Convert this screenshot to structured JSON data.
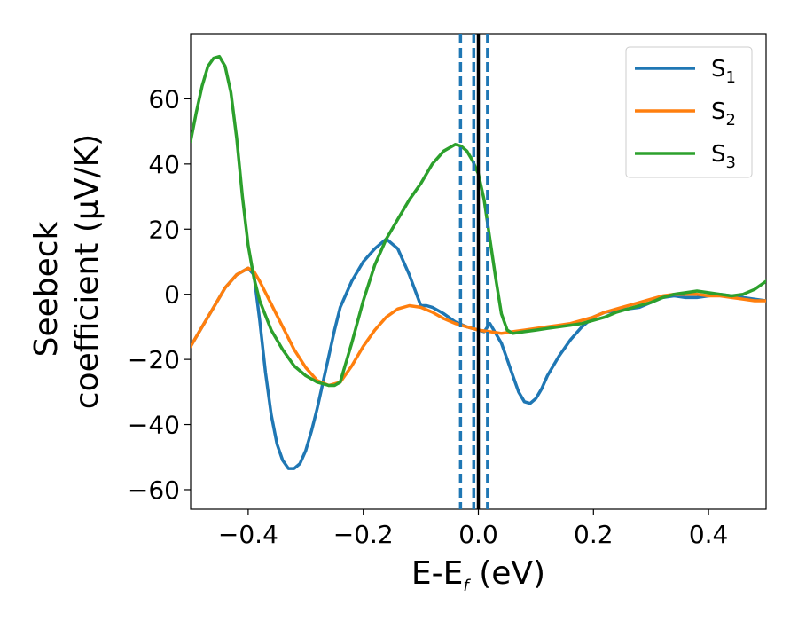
{
  "chart_data": {
    "type": "line",
    "xlabel": "E-E",
    "xlabel_sub": "f",
    "xlabel_unit": " (eV)",
    "ylabel_line1": "Seebeck",
    "ylabel_line2": "coefficient  (μV/K)",
    "xlim": [
      -0.5,
      0.5
    ],
    "ylim": [
      -66,
      80
    ],
    "xticks": [
      -0.4,
      -0.2,
      0.0,
      0.2,
      0.4
    ],
    "xtick_labels": [
      "−0.4",
      "−0.2",
      "0.0",
      "0.2",
      "0.4"
    ],
    "yticks": [
      -60,
      -40,
      -20,
      0,
      20,
      40,
      60
    ],
    "ytick_labels": [
      "−60",
      "−40",
      "−20",
      "0",
      "20",
      "40",
      "60"
    ],
    "grid": false,
    "legend_position": "top-right",
    "vlines": [
      {
        "x": -0.031,
        "style": "dashed",
        "color": "#1f77b4"
      },
      {
        "x": -0.008,
        "style": "dashed",
        "color": "#1f77b4"
      },
      {
        "x": 0.016,
        "style": "dashed",
        "color": "#1f77b4"
      },
      {
        "x": 0.0,
        "style": "solid",
        "color": "#000000"
      }
    ],
    "series": [
      {
        "name": "S",
        "sub": "1",
        "color": "#1f77b4",
        "x": [
          -0.5,
          -0.48,
          -0.46,
          -0.44,
          -0.42,
          -0.4,
          -0.39,
          -0.38,
          -0.37,
          -0.36,
          -0.35,
          -0.34,
          -0.33,
          -0.32,
          -0.31,
          -0.3,
          -0.29,
          -0.28,
          -0.27,
          -0.26,
          -0.25,
          -0.24,
          -0.22,
          -0.2,
          -0.18,
          -0.16,
          -0.14,
          -0.12,
          -0.1,
          -0.09,
          -0.08,
          -0.06,
          -0.04,
          -0.02,
          0.0,
          0.01,
          0.02,
          0.03,
          0.04,
          0.05,
          0.06,
          0.07,
          0.08,
          0.09,
          0.1,
          0.11,
          0.12,
          0.14,
          0.16,
          0.18,
          0.2,
          0.22,
          0.24,
          0.26,
          0.28,
          0.3,
          0.32,
          0.34,
          0.36,
          0.38,
          0.4,
          0.42,
          0.44,
          0.46,
          0.48,
          0.5
        ],
        "y": [
          -16,
          -10,
          -4,
          2,
          6,
          8,
          6,
          -8,
          -24,
          -37,
          -46,
          -51,
          -53.5,
          -53.5,
          -52,
          -48,
          -42,
          -35,
          -27,
          -19,
          -11,
          -4,
          4,
          10,
          14,
          17,
          14,
          6,
          -3.5,
          -3.5,
          -4,
          -6,
          -8.5,
          -10,
          -11,
          -11.5,
          -9,
          -12,
          -15,
          -20,
          -25,
          -30,
          -33,
          -33.5,
          -32,
          -29,
          -25,
          -19,
          -14,
          -10,
          -7,
          -5.5,
          -5,
          -4.5,
          -4,
          -2.5,
          -1,
          -0.5,
          -1,
          -1,
          -0.5,
          0,
          -0.5,
          -1,
          -1.5,
          -2
        ]
      },
      {
        "name": "S",
        "sub": "2",
        "color": "#ff7f0e",
        "x": [
          -0.5,
          -0.48,
          -0.46,
          -0.44,
          -0.42,
          -0.4,
          -0.39,
          -0.38,
          -0.36,
          -0.34,
          -0.32,
          -0.3,
          -0.28,
          -0.26,
          -0.24,
          -0.22,
          -0.2,
          -0.18,
          -0.16,
          -0.14,
          -0.12,
          -0.1,
          -0.08,
          -0.06,
          -0.04,
          -0.02,
          0.0,
          0.02,
          0.04,
          0.06,
          0.08,
          0.1,
          0.12,
          0.14,
          0.16,
          0.18,
          0.2,
          0.22,
          0.24,
          0.26,
          0.28,
          0.3,
          0.32,
          0.34,
          0.36,
          0.38,
          0.4,
          0.42,
          0.44,
          0.46,
          0.48,
          0.5
        ],
        "y": [
          -16,
          -10,
          -4,
          2,
          6,
          8,
          7,
          4,
          -3,
          -10,
          -17,
          -22.5,
          -26.5,
          -28,
          -27,
          -22,
          -16,
          -11,
          -7,
          -4.5,
          -3.5,
          -4,
          -5.5,
          -7.5,
          -9,
          -10,
          -11,
          -11.5,
          -12,
          -11.5,
          -11,
          -10.5,
          -10,
          -9.5,
          -9,
          -8,
          -7,
          -5.5,
          -4.5,
          -3.5,
          -2.5,
          -1.5,
          -0.5,
          0,
          0,
          0,
          -0.5,
          -0.5,
          -1,
          -1.5,
          -2,
          -2
        ]
      },
      {
        "name": "S",
        "sub": "3",
        "color": "#2ca02c",
        "x": [
          -0.5,
          -0.49,
          -0.48,
          -0.47,
          -0.46,
          -0.45,
          -0.44,
          -0.43,
          -0.42,
          -0.41,
          -0.4,
          -0.39,
          -0.38,
          -0.36,
          -0.34,
          -0.32,
          -0.3,
          -0.28,
          -0.26,
          -0.25,
          -0.24,
          -0.22,
          -0.2,
          -0.18,
          -0.16,
          -0.14,
          -0.12,
          -0.1,
          -0.08,
          -0.06,
          -0.04,
          -0.03,
          -0.02,
          -0.01,
          0.0,
          0.01,
          0.02,
          0.03,
          0.04,
          0.05,
          0.06,
          0.08,
          0.1,
          0.12,
          0.14,
          0.16,
          0.18,
          0.2,
          0.22,
          0.24,
          0.26,
          0.28,
          0.3,
          0.32,
          0.34,
          0.36,
          0.38,
          0.4,
          0.42,
          0.44,
          0.46,
          0.48,
          0.5
        ],
        "y": [
          47,
          56,
          64,
          70,
          72.5,
          73,
          70,
          62,
          48,
          30,
          15,
          5,
          -2,
          -11,
          -17,
          -22,
          -25,
          -27,
          -28,
          -28,
          -27,
          -15,
          -2,
          9,
          17,
          23,
          29,
          34,
          40,
          44,
          46,
          45.5,
          44,
          41,
          37,
          29,
          17,
          5,
          -6,
          -11,
          -12,
          -11.5,
          -11,
          -10.5,
          -10,
          -9.5,
          -9,
          -8,
          -7,
          -5.5,
          -4.5,
          -3.5,
          -2.5,
          -1,
          0,
          0.5,
          1,
          0.5,
          0,
          -0.5,
          0,
          1.5,
          4
        ]
      }
    ]
  }
}
